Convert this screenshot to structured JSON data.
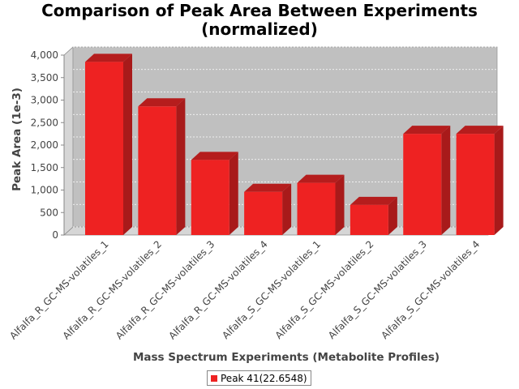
{
  "chart_data": {
    "type": "bar",
    "title_line1": "Comparison of Peak Area Between Experiments",
    "title_line2": "(normalized)",
    "xlabel": "Mass Spectrum Experiments (Metabolite Profiles)",
    "ylabel": "Peak Area (1e-3)",
    "categories": [
      "Alfalfa_R_GC-MS-volatiles_1",
      "Alfalfa_R_GC-MS-volatiles_2",
      "Alfalfa_R_GC-MS-volatiles_3",
      "Alfalfa_R_GC-MS-volatiles_4",
      "Alfalfa_S_GC-MS-volatiles_1",
      "Alfalfa_S_GC-MS-volatiles_2",
      "Alfalfa_S_GC-MS-volatiles_3",
      "Alfalfa_S_GC-MS-volatiles_4"
    ],
    "series": [
      {
        "name": "Peak 41(22.6548)",
        "values": [
          3850,
          2860,
          1670,
          960,
          1160,
          670,
          2250,
          2250
        ]
      }
    ],
    "ylim": [
      0,
      4000
    ],
    "yticks": [
      0,
      500,
      1000,
      1500,
      2000,
      2500,
      3000,
      3500,
      4000
    ],
    "ytick_labels": [
      "0",
      "500",
      "1,000",
      "1,500",
      "2,000",
      "2,500",
      "3,000",
      "3,500",
      "4,000"
    ],
    "grid": true,
    "legend_position": "bottom",
    "colors": {
      "bar": "#ee2222",
      "bar_top": "#b51d1d",
      "bar_side": "#a81a1a",
      "plot_bg": "#c0c0c0",
      "floor": "#d6d6d6"
    }
  }
}
